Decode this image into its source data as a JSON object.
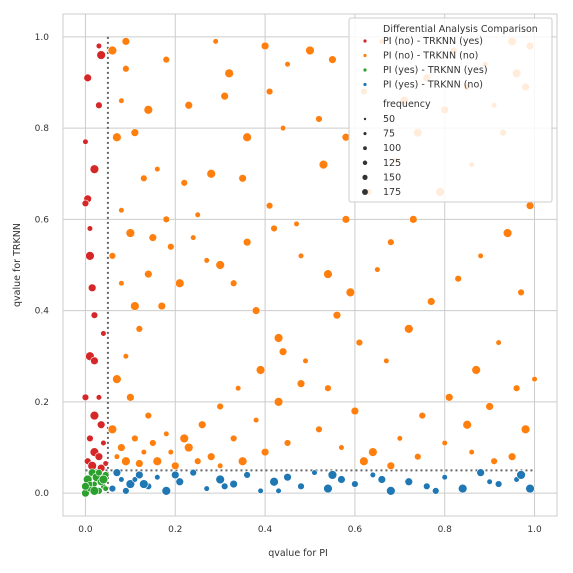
{
  "chart_data": {
    "type": "scatter",
    "xlabel": "qvalue for PI",
    "ylabel": "qvalue for TRKNN",
    "xlim": [
      -0.05,
      1.05
    ],
    "ylim": [
      -0.05,
      1.05
    ],
    "xticks": [
      "0.0",
      "0.2",
      "0.4",
      "0.6",
      "0.8",
      "1.0"
    ],
    "yticks": [
      "0.0",
      "0.2",
      "0.4",
      "0.6",
      "0.8",
      "1.0"
    ],
    "grid": true,
    "threshold": 0.05,
    "legend": {
      "title": "Differential Analysis Comparison",
      "placement": "top-right",
      "size_title": "frequency",
      "size_labels": [
        "50",
        "75",
        "100",
        "125",
        "150",
        "175"
      ]
    },
    "series": [
      {
        "name": "PI (no)  - TRKNN (yes)",
        "color": "#d62728",
        "points": [
          [
            0.03,
            0.98
          ],
          [
            0.035,
            0.96
          ],
          [
            0.005,
            0.91
          ],
          [
            0.03,
            0.85
          ],
          [
            0.0,
            0.77
          ],
          [
            0.02,
            0.71
          ],
          [
            0.005,
            0.645
          ],
          [
            0.0,
            0.635
          ],
          [
            0.01,
            0.58
          ],
          [
            0.01,
            0.52
          ],
          [
            0.015,
            0.45
          ],
          [
            0.02,
            0.39
          ],
          [
            0.04,
            0.35
          ],
          [
            0.01,
            0.3
          ],
          [
            0.02,
            0.29
          ],
          [
            0.0,
            0.21
          ],
          [
            0.03,
            0.21
          ],
          [
            0.02,
            0.17
          ],
          [
            0.035,
            0.15
          ],
          [
            0.01,
            0.12
          ],
          [
            0.04,
            0.11
          ],
          [
            0.02,
            0.09
          ],
          [
            0.03,
            0.08
          ],
          [
            0.005,
            0.07
          ],
          [
            0.045,
            0.065
          ],
          [
            0.015,
            0.06
          ],
          [
            0.035,
            0.055
          ]
        ]
      },
      {
        "name": "PI (no)  - TRKNN (no)",
        "color": "#ff7f0e",
        "points": [
          [
            0.06,
            0.97
          ],
          [
            0.09,
            0.99
          ],
          [
            0.09,
            0.93
          ],
          [
            0.08,
            0.86
          ],
          [
            0.14,
            0.84
          ],
          [
            0.23,
            0.85
          ],
          [
            0.18,
            0.95
          ],
          [
            0.29,
            0.99
          ],
          [
            0.32,
            0.92
          ],
          [
            0.4,
            0.98
          ],
          [
            0.41,
            0.88
          ],
          [
            0.45,
            0.94
          ],
          [
            0.5,
            0.97
          ],
          [
            0.55,
            0.95
          ],
          [
            0.52,
            0.82
          ],
          [
            0.44,
            0.8
          ],
          [
            0.36,
            0.78
          ],
          [
            0.31,
            0.87
          ],
          [
            0.22,
            0.68
          ],
          [
            0.16,
            0.71
          ],
          [
            0.07,
            0.78
          ],
          [
            0.11,
            0.79
          ],
          [
            0.13,
            0.69
          ],
          [
            0.08,
            0.62
          ],
          [
            0.1,
            0.57
          ],
          [
            0.15,
            0.56
          ],
          [
            0.19,
            0.54
          ],
          [
            0.25,
            0.61
          ],
          [
            0.28,
            0.7
          ],
          [
            0.35,
            0.69
          ],
          [
            0.41,
            0.63
          ],
          [
            0.47,
            0.59
          ],
          [
            0.53,
            0.72
          ],
          [
            0.58,
            0.78
          ],
          [
            0.62,
            0.88
          ],
          [
            0.66,
            0.99
          ],
          [
            0.71,
            0.86
          ],
          [
            0.76,
            0.91
          ],
          [
            0.82,
            0.97
          ],
          [
            0.89,
            0.94
          ],
          [
            0.95,
            0.99
          ],
          [
            0.98,
            0.89
          ],
          [
            0.93,
            0.79
          ],
          [
            0.86,
            0.72
          ],
          [
            0.79,
            0.66
          ],
          [
            0.73,
            0.6
          ],
          [
            0.68,
            0.55
          ],
          [
            0.65,
            0.49
          ],
          [
            0.59,
            0.44
          ],
          [
            0.56,
            0.39
          ],
          [
            0.61,
            0.33
          ],
          [
            0.67,
            0.29
          ],
          [
            0.72,
            0.36
          ],
          [
            0.77,
            0.42
          ],
          [
            0.83,
            0.47
          ],
          [
            0.88,
            0.52
          ],
          [
            0.94,
            0.57
          ],
          [
            0.99,
            0.63
          ],
          [
            0.97,
            0.44
          ],
          [
            0.92,
            0.33
          ],
          [
            0.87,
            0.27
          ],
          [
            0.81,
            0.21
          ],
          [
            0.75,
            0.17
          ],
          [
            0.7,
            0.12
          ],
          [
            0.64,
            0.09
          ],
          [
            0.6,
            0.18
          ],
          [
            0.54,
            0.23
          ],
          [
            0.49,
            0.29
          ],
          [
            0.43,
            0.34
          ],
          [
            0.38,
            0.4
          ],
          [
            0.33,
            0.46
          ],
          [
            0.27,
            0.51
          ],
          [
            0.21,
            0.46
          ],
          [
            0.17,
            0.41
          ],
          [
            0.12,
            0.36
          ],
          [
            0.09,
            0.3
          ],
          [
            0.07,
            0.25
          ],
          [
            0.1,
            0.21
          ],
          [
            0.14,
            0.17
          ],
          [
            0.18,
            0.13
          ],
          [
            0.23,
            0.1
          ],
          [
            0.28,
            0.08
          ],
          [
            0.33,
            0.12
          ],
          [
            0.38,
            0.16
          ],
          [
            0.43,
            0.2
          ],
          [
            0.48,
            0.24
          ],
          [
            0.52,
            0.14
          ],
          [
            0.57,
            0.1
          ],
          [
            0.62,
            0.07
          ],
          [
            0.68,
            0.06
          ],
          [
            0.74,
            0.08
          ],
          [
            0.8,
            0.11
          ],
          [
            0.85,
            0.15
          ],
          [
            0.9,
            0.19
          ],
          [
            0.96,
            0.23
          ],
          [
            1.0,
            0.25
          ],
          [
            0.98,
            0.14
          ],
          [
            0.95,
            0.08
          ],
          [
            0.91,
            0.07
          ],
          [
            0.86,
            0.09
          ],
          [
            0.06,
            0.14
          ],
          [
            0.08,
            0.1
          ],
          [
            0.11,
            0.12
          ],
          [
            0.13,
            0.09
          ],
          [
            0.16,
            0.07
          ],
          [
            0.2,
            0.06
          ],
          [
            0.25,
            0.07
          ],
          [
            0.3,
            0.06
          ],
          [
            0.35,
            0.07
          ],
          [
            0.4,
            0.09
          ],
          [
            0.45,
            0.11
          ],
          [
            0.07,
            0.08
          ],
          [
            0.09,
            0.07
          ],
          [
            0.12,
            0.065
          ],
          [
            0.15,
            0.11
          ],
          [
            0.19,
            0.09
          ],
          [
            0.22,
            0.12
          ],
          [
            0.26,
            0.15
          ],
          [
            0.3,
            0.19
          ],
          [
            0.34,
            0.23
          ],
          [
            0.39,
            0.27
          ],
          [
            0.44,
            0.31
          ],
          [
            0.06,
            0.52
          ],
          [
            0.08,
            0.46
          ],
          [
            0.11,
            0.41
          ],
          [
            0.14,
            0.48
          ],
          [
            0.18,
            0.6
          ],
          [
            0.24,
            0.56
          ],
          [
            0.3,
            0.5
          ],
          [
            0.36,
            0.55
          ],
          [
            0.42,
            0.58
          ],
          [
            0.48,
            0.52
          ],
          [
            0.54,
            0.48
          ],
          [
            0.58,
            0.6
          ],
          [
            0.63,
            0.66
          ],
          [
            0.69,
            0.73
          ],
          [
            0.74,
            0.79
          ],
          [
            0.8,
            0.84
          ],
          [
            0.85,
            0.89
          ],
          [
            0.91,
            0.85
          ],
          [
            0.96,
            0.92
          ],
          [
            0.99,
            0.98
          ]
        ]
      },
      {
        "name": "PI (yes) - TRKNN (yes)",
        "color": "#2ca02c",
        "points": [
          [
            0.0,
            0.0
          ],
          [
            0.01,
            0.01
          ],
          [
            0.02,
            0.02
          ],
          [
            0.005,
            0.03
          ],
          [
            0.015,
            0.045
          ],
          [
            0.03,
            0.005
          ],
          [
            0.04,
            0.015
          ],
          [
            0.025,
            0.035
          ],
          [
            0.035,
            0.025
          ],
          [
            0.045,
            0.04
          ],
          [
            0.01,
            0.02
          ],
          [
            0.02,
            0.005
          ],
          [
            0.0,
            0.015
          ],
          [
            0.03,
            0.045
          ],
          [
            0.045,
            0.01
          ],
          [
            0.04,
            0.03
          ]
        ]
      },
      {
        "name": "PI (yes) - TRKNN (no)",
        "color": "#1f77b4",
        "points": [
          [
            0.06,
            0.01
          ],
          [
            0.08,
            0.03
          ],
          [
            0.1,
            0.02
          ],
          [
            0.12,
            0.04
          ],
          [
            0.14,
            0.015
          ],
          [
            0.16,
            0.035
          ],
          [
            0.18,
            0.005
          ],
          [
            0.21,
            0.025
          ],
          [
            0.24,
            0.045
          ],
          [
            0.27,
            0.01
          ],
          [
            0.3,
            0.03
          ],
          [
            0.33,
            0.02
          ],
          [
            0.36,
            0.04
          ],
          [
            0.39,
            0.005
          ],
          [
            0.42,
            0.025
          ],
          [
            0.45,
            0.035
          ],
          [
            0.48,
            0.015
          ],
          [
            0.51,
            0.045
          ],
          [
            0.54,
            0.01
          ],
          [
            0.57,
            0.03
          ],
          [
            0.6,
            0.02
          ],
          [
            0.64,
            0.04
          ],
          [
            0.68,
            0.005
          ],
          [
            0.72,
            0.025
          ],
          [
            0.76,
            0.015
          ],
          [
            0.8,
            0.035
          ],
          [
            0.84,
            0.01
          ],
          [
            0.88,
            0.045
          ],
          [
            0.92,
            0.02
          ],
          [
            0.96,
            0.03
          ],
          [
            0.99,
            0.01
          ],
          [
            0.07,
            0.045
          ],
          [
            0.09,
            0.005
          ],
          [
            0.11,
            0.03
          ],
          [
            0.13,
            0.02
          ],
          [
            0.2,
            0.04
          ],
          [
            0.31,
            0.015
          ],
          [
            0.43,
            0.005
          ],
          [
            0.55,
            0.04
          ],
          [
            0.66,
            0.03
          ],
          [
            0.78,
            0.005
          ],
          [
            0.9,
            0.025
          ],
          [
            0.97,
            0.04
          ]
        ]
      }
    ]
  }
}
